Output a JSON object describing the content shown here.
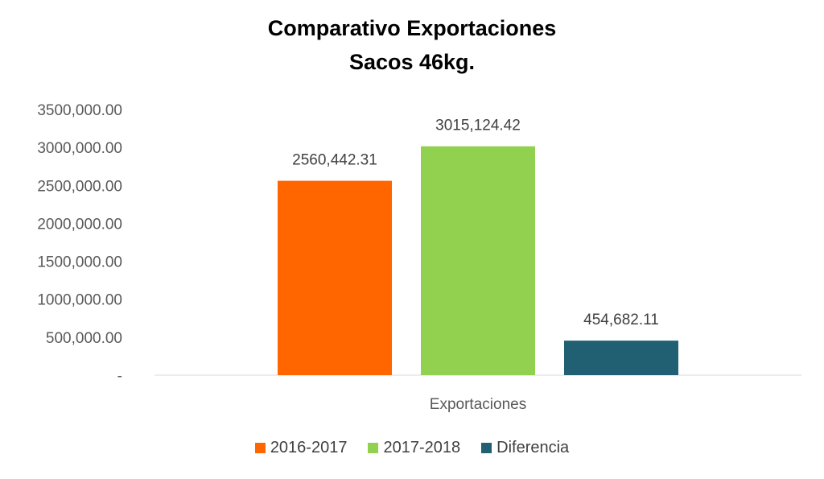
{
  "chart_data": {
    "type": "bar",
    "title": "Comparativo Exportaciones",
    "subtitle": "Sacos 46kg.",
    "categories": [
      "Exportaciones"
    ],
    "series": [
      {
        "name": "2016-2017",
        "values": [
          2560442.31
        ],
        "label": "2560,442.31",
        "color": "#FF6600"
      },
      {
        "name": "2017-2018",
        "values": [
          3015124.42
        ],
        "label": "3015,124.42",
        "color": "#92D050"
      },
      {
        "name": "Diferencia",
        "values": [
          454682.11
        ],
        "label": "454,682.11",
        "color": "#215F72"
      }
    ],
    "ylim": [
      0,
      3500000
    ],
    "yticks": [
      {
        "value": 0,
        "label": "-"
      },
      {
        "value": 500000,
        "label": "500,000.00"
      },
      {
        "value": 1000000,
        "label": "1000,000.00"
      },
      {
        "value": 1500000,
        "label": "1500,000.00"
      },
      {
        "value": 2000000,
        "label": "2000,000.00"
      },
      {
        "value": 2500000,
        "label": "2500,000.00"
      },
      {
        "value": 3000000,
        "label": "3000,000.00"
      },
      {
        "value": 3500000,
        "label": "3500,000.00"
      }
    ],
    "grid": false,
    "legend_position": "bottom"
  }
}
